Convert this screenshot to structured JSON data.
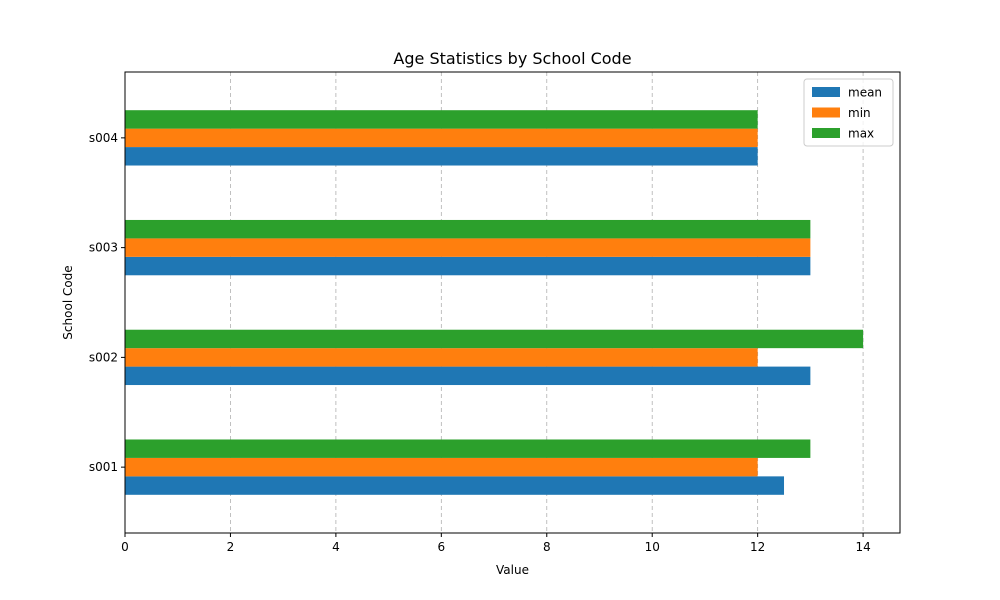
{
  "chart_data": {
    "type": "bar",
    "orientation": "horizontal",
    "title": "Age Statistics by School Code",
    "xlabel": "Value",
    "ylabel": "School Code",
    "categories": [
      "s001",
      "s002",
      "s003",
      "s004"
    ],
    "series": [
      {
        "name": "mean",
        "color": "#1f77b4",
        "values": [
          12.5,
          13,
          13,
          12
        ]
      },
      {
        "name": "min",
        "color": "#ff7f0e",
        "values": [
          12,
          12,
          13,
          12
        ]
      },
      {
        "name": "max",
        "color": "#2ca02c",
        "values": [
          13,
          14,
          13,
          12
        ]
      }
    ],
    "xlim": [
      0,
      14.7
    ],
    "xticks": [
      0,
      2,
      4,
      6,
      8,
      10,
      12,
      14
    ],
    "grid": {
      "x": true,
      "y": false
    },
    "legend_position": "top-right"
  }
}
